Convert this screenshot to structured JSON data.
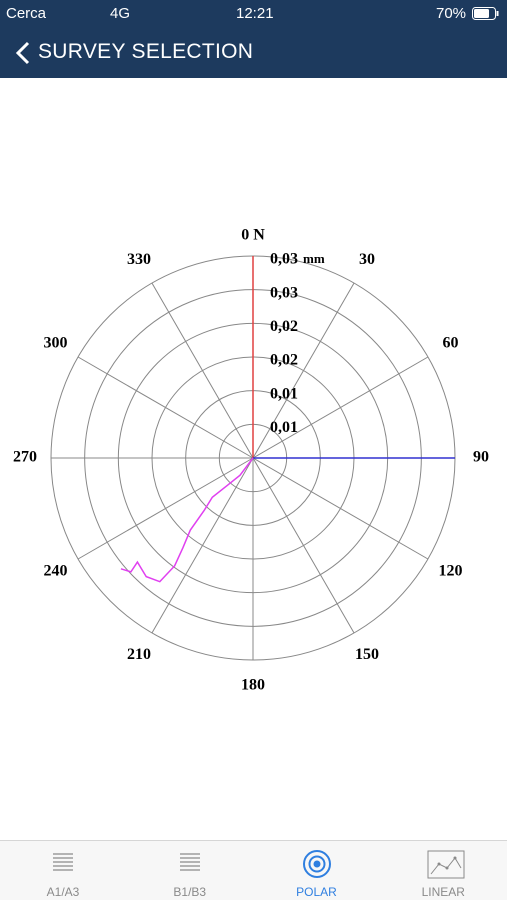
{
  "status_bar": {
    "carrier": "Cerca",
    "network": "4G",
    "time": "12:21",
    "battery": "70%"
  },
  "header": {
    "title": "SURVEY SELECTION"
  },
  "chart_data": {
    "type": "polar",
    "xlim": [
      0,
      360
    ],
    "xticks": [
      {
        "value": 0,
        "label": "0 N"
      },
      30,
      60,
      90,
      120,
      150,
      180,
      210,
      240,
      270,
      300,
      330
    ],
    "ylim": [
      0,
      0.03
    ],
    "yticks": [
      {
        "value": 0.005,
        "label": "0,01"
      },
      {
        "value": 0.01,
        "label": "0,01"
      },
      {
        "value": 0.015,
        "label": "0,02"
      },
      {
        "value": 0.02,
        "label": "0,02"
      },
      {
        "value": 0.025,
        "label": "0,03"
      },
      {
        "value": 0.03,
        "label": "0,03"
      }
    ],
    "radial_unit": "mm",
    "grid": true,
    "series": [
      {
        "color": "#e040f0",
        "x": [
          0,
          217,
          223,
          226,
          223,
          221,
          218,
          216,
          217,
          222,
          228,
          227,
          230
        ],
        "values": [
          0,
          0.0032,
          0.0055,
          0.0084,
          0.0106,
          0.0142,
          0.0169,
          0.0198,
          0.023,
          0.0237,
          0.0231,
          0.0248,
          0.0256
        ]
      }
    ]
  },
  "tabs": [
    {
      "label": "A1/A3"
    },
    {
      "label": "B1/B3"
    },
    {
      "label": "POLAR",
      "active": true
    },
    {
      "label": "LINEAR"
    }
  ]
}
